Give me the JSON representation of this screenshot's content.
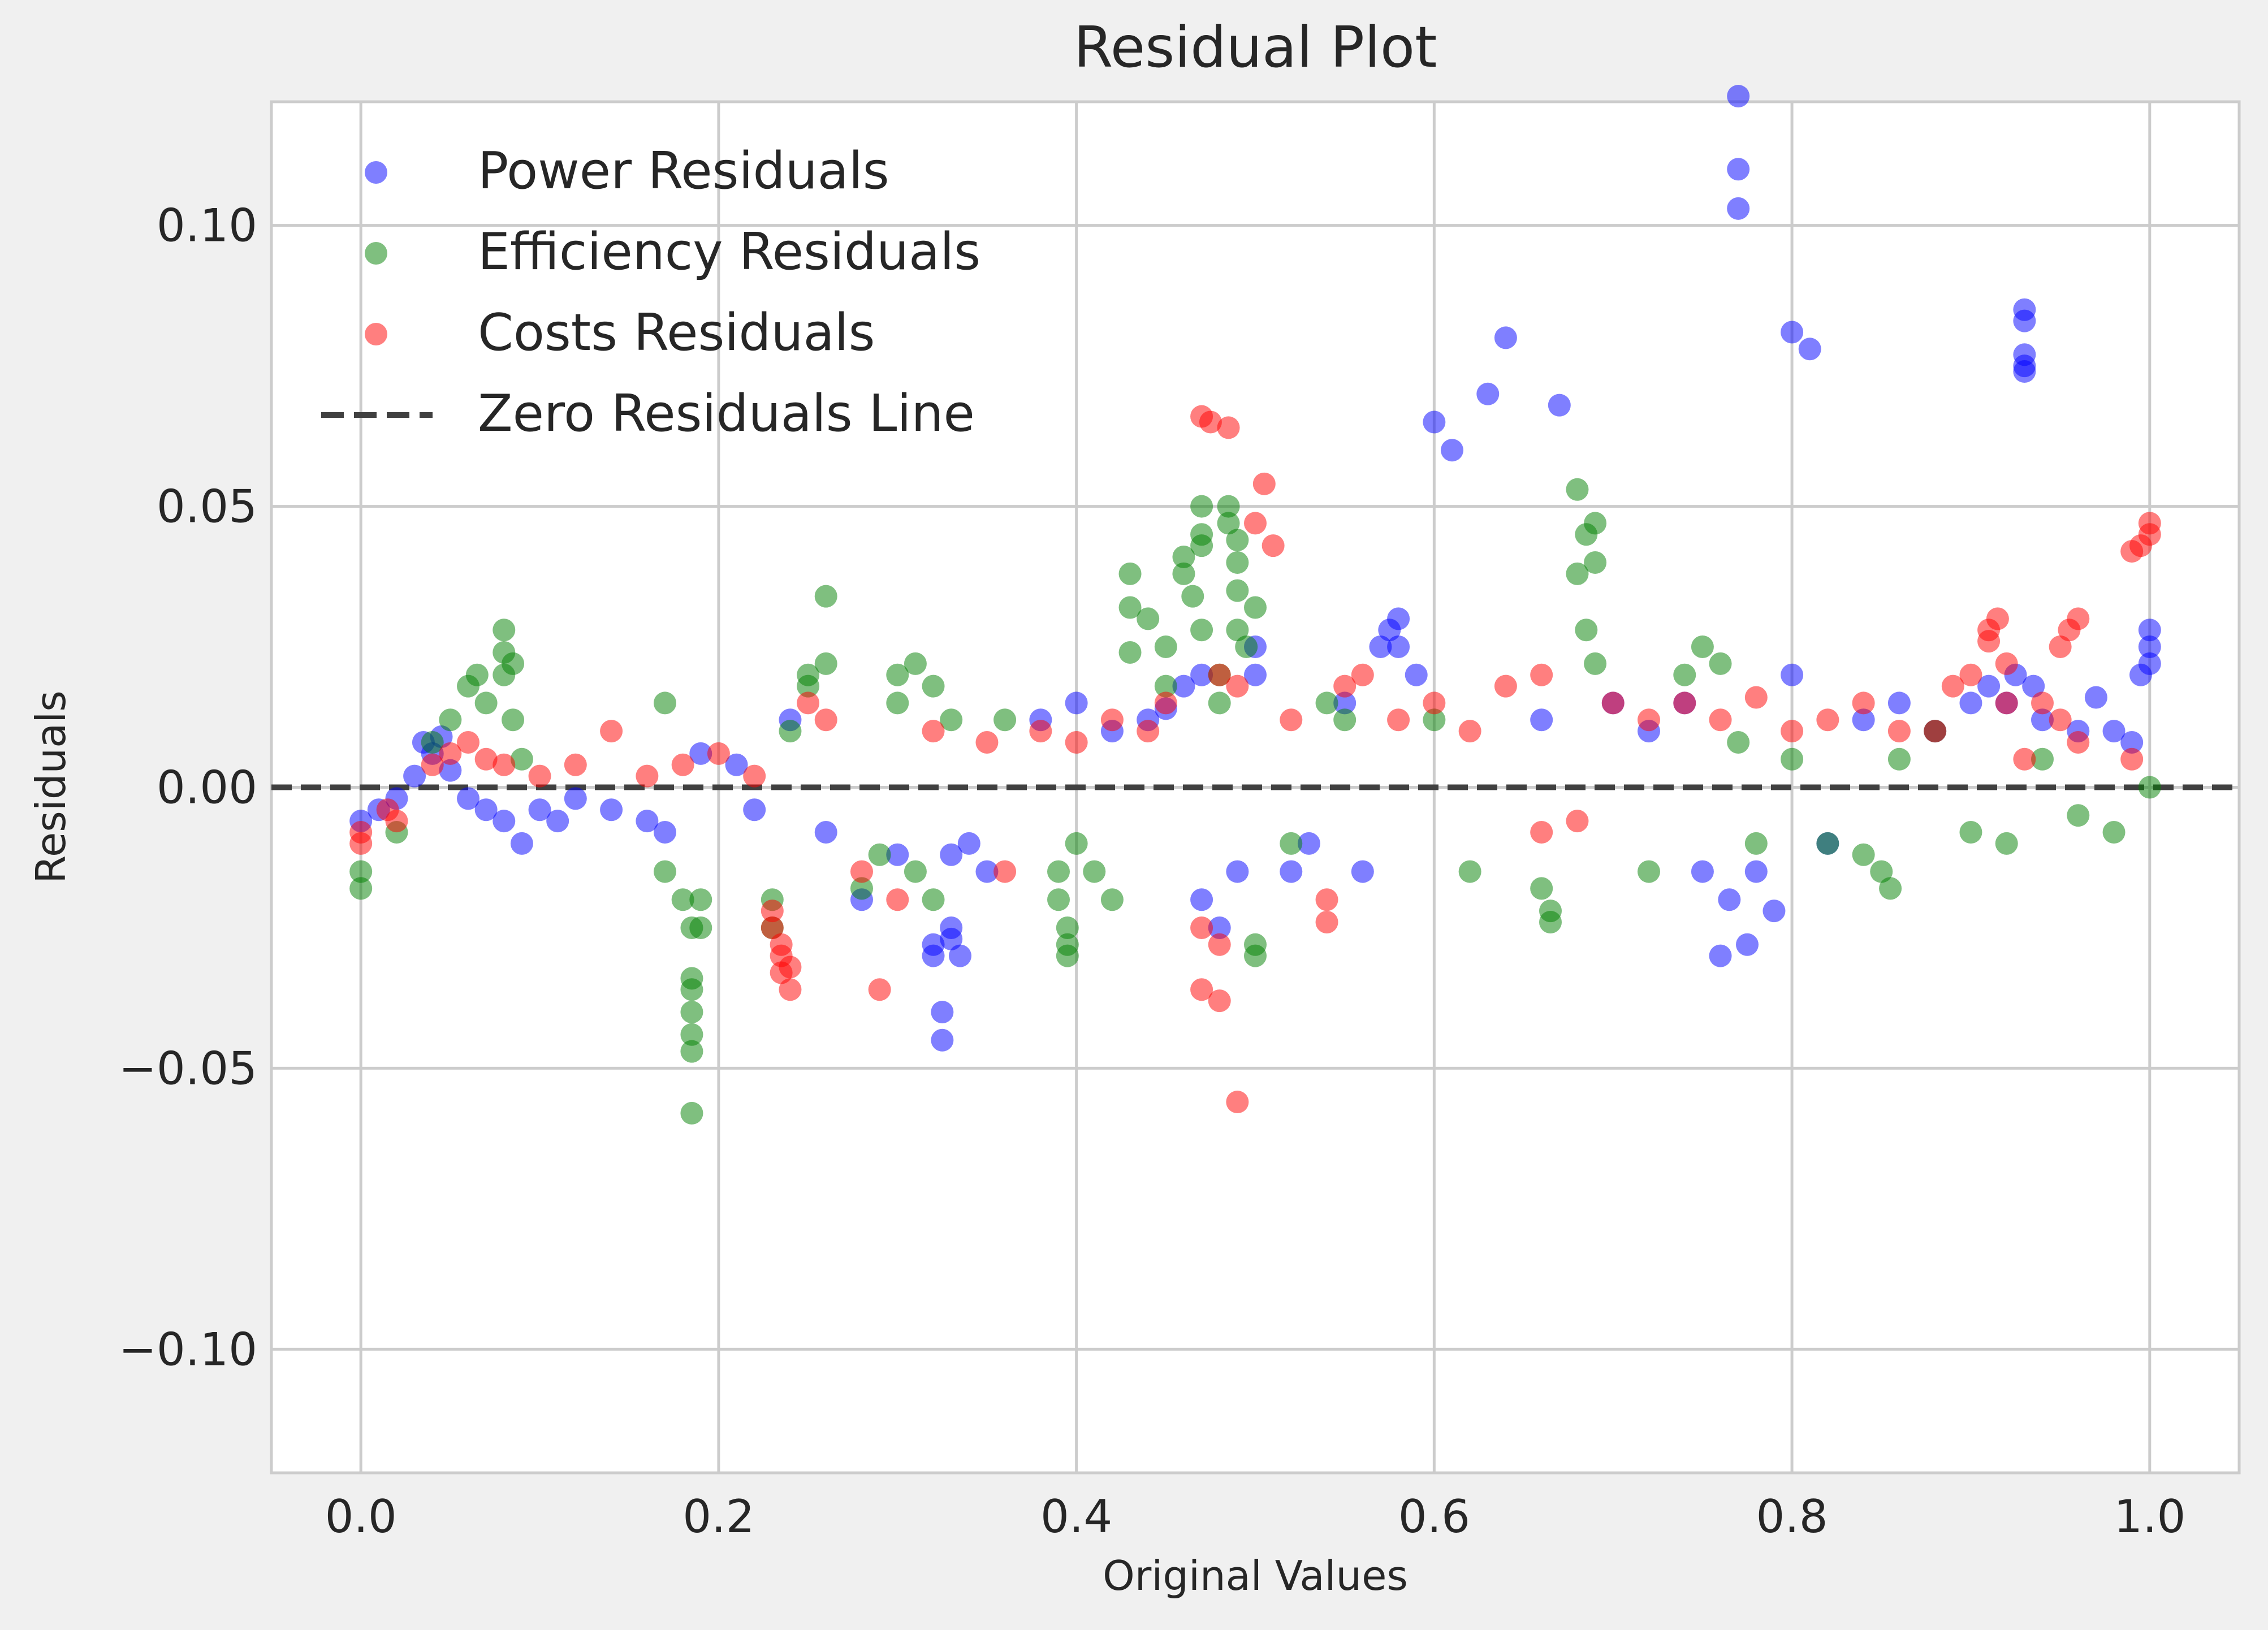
{
  "chart_data": {
    "type": "scatter",
    "title": "Residual Plot",
    "xlabel": "Original Values",
    "ylabel": "Residuals",
    "xlim": [
      -0.05,
      1.05
    ],
    "ylim": [
      -0.122,
      0.122
    ],
    "x_ticks": [
      0.0,
      0.2,
      0.4,
      0.6,
      0.8,
      1.0
    ],
    "x_tick_labels": [
      "0.0",
      "0.2",
      "0.4",
      "0.6",
      "0.8",
      "1.0"
    ],
    "y_ticks": [
      0.1,
      0.05,
      0.0,
      -0.05,
      -0.1
    ],
    "y_tick_labels": [
      "0.10",
      "0.05",
      "0.00",
      "−0.05",
      "−0.10"
    ],
    "grid": true,
    "legend_position": "top-left",
    "reference_line": {
      "name": "Zero Residuals Line",
      "y": 0.0,
      "style": "dashed",
      "color": "#404040"
    },
    "series": [
      {
        "name": "Power Residuals",
        "color": "#0000ff",
        "points": [
          [
            0.0,
            -0.006
          ],
          [
            0.01,
            -0.004
          ],
          [
            0.02,
            -0.002
          ],
          [
            0.03,
            0.002
          ],
          [
            0.035,
            0.008
          ],
          [
            0.04,
            0.006
          ],
          [
            0.045,
            0.009
          ],
          [
            0.05,
            0.003
          ],
          [
            0.06,
            -0.002
          ],
          [
            0.07,
            -0.004
          ],
          [
            0.08,
            -0.006
          ],
          [
            0.09,
            -0.01
          ],
          [
            0.1,
            -0.004
          ],
          [
            0.11,
            -0.006
          ],
          [
            0.12,
            -0.002
          ],
          [
            0.14,
            -0.004
          ],
          [
            0.16,
            -0.006
          ],
          [
            0.17,
            -0.008
          ],
          [
            0.19,
            0.006
          ],
          [
            0.21,
            0.004
          ],
          [
            0.22,
            -0.004
          ],
          [
            0.24,
            0.012
          ],
          [
            0.26,
            -0.008
          ],
          [
            0.28,
            -0.02
          ],
          [
            0.3,
            -0.012
          ],
          [
            0.32,
            -0.028
          ],
          [
            0.32,
            -0.03
          ],
          [
            0.325,
            -0.04
          ],
          [
            0.325,
            -0.045
          ],
          [
            0.33,
            -0.025
          ],
          [
            0.33,
            -0.027
          ],
          [
            0.335,
            -0.03
          ],
          [
            0.33,
            -0.012
          ],
          [
            0.34,
            -0.01
          ],
          [
            0.35,
            -0.015
          ],
          [
            0.38,
            0.012
          ],
          [
            0.4,
            0.015
          ],
          [
            0.42,
            0.01
          ],
          [
            0.44,
            0.012
          ],
          [
            0.45,
            0.014
          ],
          [
            0.46,
            0.018
          ],
          [
            0.47,
            0.02
          ],
          [
            0.47,
            -0.02
          ],
          [
            0.48,
            -0.025
          ],
          [
            0.49,
            -0.015
          ],
          [
            0.5,
            0.025
          ],
          [
            0.5,
            0.02
          ],
          [
            0.52,
            -0.015
          ],
          [
            0.53,
            -0.01
          ],
          [
            0.55,
            0.015
          ],
          [
            0.56,
            -0.015
          ],
          [
            0.57,
            0.025
          ],
          [
            0.575,
            0.028
          ],
          [
            0.58,
            0.03
          ],
          [
            0.58,
            0.025
          ],
          [
            0.59,
            0.02
          ],
          [
            0.6,
            0.065
          ],
          [
            0.61,
            0.06
          ],
          [
            0.63,
            0.07
          ],
          [
            0.64,
            0.08
          ],
          [
            0.67,
            0.068
          ],
          [
            0.66,
            0.012
          ],
          [
            0.7,
            0.015
          ],
          [
            0.72,
            0.01
          ],
          [
            0.74,
            0.015
          ],
          [
            0.75,
            -0.015
          ],
          [
            0.76,
            -0.03
          ],
          [
            0.765,
            -0.02
          ],
          [
            0.77,
            0.123
          ],
          [
            0.77,
            0.11
          ],
          [
            0.77,
            0.103
          ],
          [
            0.775,
            -0.028
          ],
          [
            0.78,
            -0.015
          ],
          [
            0.79,
            -0.022
          ],
          [
            0.8,
            0.02
          ],
          [
            0.8,
            0.081
          ],
          [
            0.81,
            0.078
          ],
          [
            0.82,
            -0.01
          ],
          [
            0.84,
            0.012
          ],
          [
            0.86,
            0.015
          ],
          [
            0.88,
            0.01
          ],
          [
            0.9,
            0.015
          ],
          [
            0.91,
            0.018
          ],
          [
            0.92,
            0.015
          ],
          [
            0.925,
            0.02
          ],
          [
            0.93,
            0.085
          ],
          [
            0.93,
            0.083
          ],
          [
            0.93,
            0.077
          ],
          [
            0.93,
            0.075
          ],
          [
            0.93,
            0.074
          ],
          [
            0.935,
            0.018
          ],
          [
            0.94,
            0.012
          ],
          [
            0.96,
            0.01
          ],
          [
            0.97,
            0.016
          ],
          [
            0.98,
            0.01
          ],
          [
            0.99,
            0.008
          ],
          [
            0.995,
            0.02
          ],
          [
            1.0,
            0.025
          ],
          [
            1.0,
            0.028
          ],
          [
            1.0,
            0.022
          ]
        ]
      },
      {
        "name": "Efficiency Residuals",
        "color": "#008000",
        "points": [
          [
            0.0,
            -0.015
          ],
          [
            0.0,
            -0.018
          ],
          [
            0.02,
            -0.008
          ],
          [
            0.04,
            0.008
          ],
          [
            0.05,
            0.012
          ],
          [
            0.06,
            0.018
          ],
          [
            0.065,
            0.02
          ],
          [
            0.07,
            0.015
          ],
          [
            0.08,
            0.02
          ],
          [
            0.08,
            0.024
          ],
          [
            0.08,
            0.028
          ],
          [
            0.085,
            0.022
          ],
          [
            0.085,
            0.012
          ],
          [
            0.09,
            0.005
          ],
          [
            0.17,
            0.015
          ],
          [
            0.17,
            -0.015
          ],
          [
            0.18,
            -0.02
          ],
          [
            0.185,
            -0.025
          ],
          [
            0.185,
            -0.034
          ],
          [
            0.185,
            -0.036
          ],
          [
            0.185,
            -0.04
          ],
          [
            0.185,
            -0.044
          ],
          [
            0.185,
            -0.047
          ],
          [
            0.185,
            -0.058
          ],
          [
            0.19,
            -0.02
          ],
          [
            0.19,
            -0.025
          ],
          [
            0.23,
            -0.02
          ],
          [
            0.23,
            -0.025
          ],
          [
            0.24,
            0.01
          ],
          [
            0.25,
            0.018
          ],
          [
            0.25,
            0.02
          ],
          [
            0.26,
            0.034
          ],
          [
            0.26,
            0.022
          ],
          [
            0.28,
            -0.018
          ],
          [
            0.29,
            -0.012
          ],
          [
            0.3,
            0.02
          ],
          [
            0.3,
            0.015
          ],
          [
            0.31,
            0.022
          ],
          [
            0.31,
            -0.015
          ],
          [
            0.32,
            0.018
          ],
          [
            0.32,
            -0.02
          ],
          [
            0.33,
            0.012
          ],
          [
            0.36,
            0.012
          ],
          [
            0.39,
            -0.015
          ],
          [
            0.39,
            -0.02
          ],
          [
            0.395,
            -0.025
          ],
          [
            0.395,
            -0.028
          ],
          [
            0.395,
            -0.03
          ],
          [
            0.4,
            -0.01
          ],
          [
            0.41,
            -0.015
          ],
          [
            0.42,
            -0.02
          ],
          [
            0.43,
            0.038
          ],
          [
            0.43,
            0.032
          ],
          [
            0.43,
            0.024
          ],
          [
            0.44,
            0.03
          ],
          [
            0.45,
            0.025
          ],
          [
            0.45,
            0.018
          ],
          [
            0.46,
            0.041
          ],
          [
            0.46,
            0.038
          ],
          [
            0.465,
            0.034
          ],
          [
            0.47,
            0.043
          ],
          [
            0.47,
            0.045
          ],
          [
            0.47,
            0.05
          ],
          [
            0.47,
            0.028
          ],
          [
            0.48,
            0.02
          ],
          [
            0.48,
            0.015
          ],
          [
            0.485,
            0.05
          ],
          [
            0.485,
            0.047
          ],
          [
            0.49,
            0.044
          ],
          [
            0.49,
            0.04
          ],
          [
            0.49,
            0.035
          ],
          [
            0.49,
            0.028
          ],
          [
            0.495,
            0.025
          ],
          [
            0.5,
            0.032
          ],
          [
            0.5,
            -0.028
          ],
          [
            0.5,
            -0.03
          ],
          [
            0.52,
            -0.01
          ],
          [
            0.54,
            0.015
          ],
          [
            0.55,
            0.012
          ],
          [
            0.6,
            0.012
          ],
          [
            0.62,
            -0.015
          ],
          [
            0.66,
            -0.018
          ],
          [
            0.665,
            -0.022
          ],
          [
            0.665,
            -0.024
          ],
          [
            0.68,
            0.053
          ],
          [
            0.685,
            0.045
          ],
          [
            0.69,
            0.047
          ],
          [
            0.69,
            0.04
          ],
          [
            0.68,
            0.038
          ],
          [
            0.685,
            0.028
          ],
          [
            0.69,
            0.022
          ],
          [
            0.72,
            -0.015
          ],
          [
            0.74,
            0.02
          ],
          [
            0.75,
            0.025
          ],
          [
            0.76,
            0.022
          ],
          [
            0.77,
            0.008
          ],
          [
            0.78,
            -0.01
          ],
          [
            0.8,
            0.005
          ],
          [
            0.82,
            -0.01
          ],
          [
            0.84,
            -0.012
          ],
          [
            0.85,
            -0.015
          ],
          [
            0.855,
            -0.018
          ],
          [
            0.86,
            0.005
          ],
          [
            0.88,
            0.01
          ],
          [
            0.9,
            -0.008
          ],
          [
            0.92,
            -0.01
          ],
          [
            0.94,
            0.005
          ],
          [
            0.96,
            -0.005
          ],
          [
            0.98,
            -0.008
          ],
          [
            1.0,
            0.0
          ]
        ]
      },
      {
        "name": "Costs Residuals",
        "color": "#ff0000",
        "points": [
          [
            0.0,
            -0.008
          ],
          [
            0.0,
            -0.01
          ],
          [
            0.015,
            -0.004
          ],
          [
            0.02,
            -0.006
          ],
          [
            0.04,
            0.004
          ],
          [
            0.05,
            0.006
          ],
          [
            0.06,
            0.008
          ],
          [
            0.07,
            0.005
          ],
          [
            0.08,
            0.004
          ],
          [
            0.1,
            0.002
          ],
          [
            0.12,
            0.004
          ],
          [
            0.14,
            0.01
          ],
          [
            0.16,
            0.002
          ],
          [
            0.18,
            0.004
          ],
          [
            0.2,
            0.006
          ],
          [
            0.22,
            0.002
          ],
          [
            0.23,
            -0.022
          ],
          [
            0.23,
            -0.025
          ],
          [
            0.235,
            -0.028
          ],
          [
            0.235,
            -0.03
          ],
          [
            0.235,
            -0.033
          ],
          [
            0.24,
            -0.036
          ],
          [
            0.24,
            -0.032
          ],
          [
            0.25,
            0.015
          ],
          [
            0.26,
            0.012
          ],
          [
            0.28,
            -0.015
          ],
          [
            0.29,
            -0.036
          ],
          [
            0.3,
            -0.02
          ],
          [
            0.32,
            0.01
          ],
          [
            0.35,
            0.008
          ],
          [
            0.36,
            -0.015
          ],
          [
            0.38,
            0.01
          ],
          [
            0.4,
            0.008
          ],
          [
            0.42,
            0.012
          ],
          [
            0.44,
            0.01
          ],
          [
            0.45,
            0.015
          ],
          [
            0.47,
            0.066
          ],
          [
            0.475,
            0.065
          ],
          [
            0.485,
            0.064
          ],
          [
            0.47,
            -0.036
          ],
          [
            0.48,
            -0.038
          ],
          [
            0.47,
            -0.025
          ],
          [
            0.48,
            -0.028
          ],
          [
            0.48,
            0.02
          ],
          [
            0.49,
            0.018
          ],
          [
            0.5,
            0.047
          ],
          [
            0.505,
            0.054
          ],
          [
            0.51,
            0.043
          ],
          [
            0.49,
            -0.056
          ],
          [
            0.52,
            0.012
          ],
          [
            0.54,
            -0.02
          ],
          [
            0.54,
            -0.024
          ],
          [
            0.55,
            0.018
          ],
          [
            0.56,
            0.02
          ],
          [
            0.58,
            0.012
          ],
          [
            0.6,
            0.015
          ],
          [
            0.62,
            0.01
          ],
          [
            0.64,
            0.018
          ],
          [
            0.66,
            0.02
          ],
          [
            0.66,
            -0.008
          ],
          [
            0.68,
            -0.006
          ],
          [
            0.7,
            0.015
          ],
          [
            0.72,
            0.012
          ],
          [
            0.74,
            0.015
          ],
          [
            0.76,
            0.012
          ],
          [
            0.78,
            0.016
          ],
          [
            0.8,
            0.01
          ],
          [
            0.82,
            0.012
          ],
          [
            0.84,
            0.015
          ],
          [
            0.86,
            0.01
          ],
          [
            0.88,
            0.01
          ],
          [
            0.89,
            0.018
          ],
          [
            0.9,
            0.02
          ],
          [
            0.91,
            0.026
          ],
          [
            0.91,
            0.028
          ],
          [
            0.915,
            0.03
          ],
          [
            0.92,
            0.022
          ],
          [
            0.92,
            0.015
          ],
          [
            0.93,
            0.005
          ],
          [
            0.94,
            0.015
          ],
          [
            0.95,
            0.025
          ],
          [
            0.955,
            0.028
          ],
          [
            0.96,
            0.03
          ],
          [
            0.95,
            0.012
          ],
          [
            0.96,
            0.008
          ],
          [
            0.99,
            0.042
          ],
          [
            0.995,
            0.043
          ],
          [
            1.0,
            0.045
          ],
          [
            1.0,
            0.047
          ],
          [
            0.99,
            0.005
          ]
        ]
      }
    ]
  }
}
